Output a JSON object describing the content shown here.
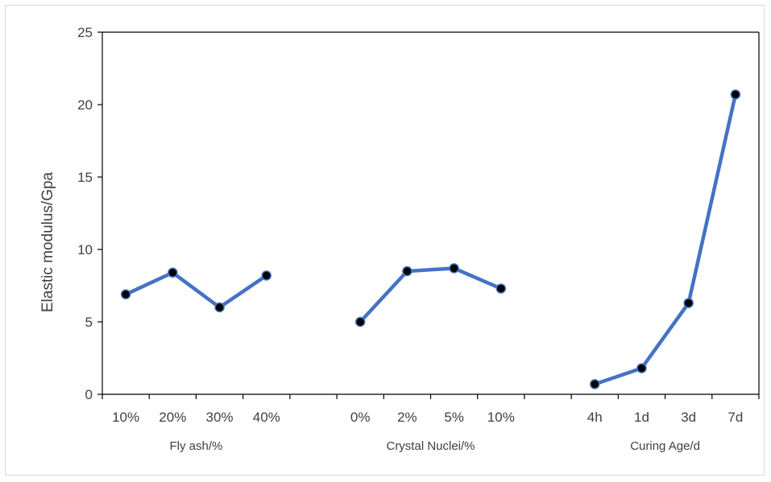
{
  "chart_data": {
    "type": "line",
    "ylabel": "Elastic modulus/Gpa",
    "ylim": [
      0,
      25
    ],
    "yticks": [
      "0",
      "5",
      "10",
      "15",
      "20",
      "25"
    ],
    "grid": false,
    "legend": "none",
    "colors": {
      "line": "#4472c4",
      "marker": "#000000",
      "axis": "#000000",
      "text": "#404040"
    },
    "groups": [
      {
        "label": "Fly ash/%",
        "categories": [
          "10%",
          "20%",
          "30%",
          "40%"
        ],
        "values": [
          6.9,
          8.4,
          6.0,
          8.2
        ]
      },
      {
        "label": "Crystal Nuclei/%",
        "categories": [
          "0%",
          "2%",
          "5%",
          "10%"
        ],
        "values": [
          5.0,
          8.5,
          8.7,
          7.3
        ]
      },
      {
        "label": "Curing Age/d",
        "categories": [
          "4h",
          "1d",
          "3d",
          "7d"
        ],
        "values": [
          0.7,
          1.8,
          6.3,
          20.7
        ]
      }
    ]
  }
}
